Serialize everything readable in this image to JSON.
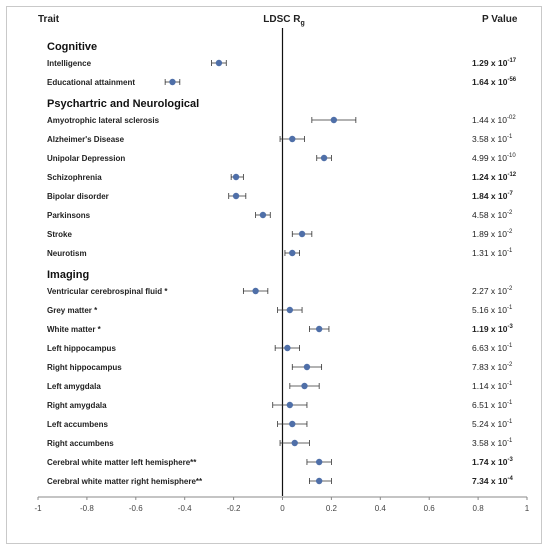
{
  "header": {
    "trait": "Trait",
    "ldsc": "LDSC R",
    "ldsc_sub": "g",
    "pvalue": "P Value"
  },
  "chart_data": {
    "type": "forest",
    "title": "",
    "xlabel": "",
    "ylabel": "",
    "xlim": [
      -1,
      1
    ],
    "xticks": [
      "-1",
      "-0.8",
      "-0.6",
      "-0.4",
      "-0.2",
      "0",
      "0.2",
      "0.4",
      "0.6",
      "0.8",
      "1"
    ],
    "grid": false,
    "marker_color": "#4f6fa8",
    "rows": [
      {
        "kind": "section",
        "label": "Cognitive"
      },
      {
        "kind": "trait",
        "label": "Intelligence",
        "est": -0.26,
        "lo": -0.29,
        "hi": -0.23,
        "p_mant": "1.29 x 10",
        "p_exp": "-17",
        "bold": true
      },
      {
        "kind": "trait",
        "label": "Educational attainment",
        "est": -0.45,
        "lo": -0.48,
        "hi": -0.42,
        "p_mant": "1.64 x 10",
        "p_exp": "-56",
        "bold": true
      },
      {
        "kind": "section",
        "label": "Psychartric and Neurological"
      },
      {
        "kind": "trait",
        "label": "Amyotrophic lateral sclerosis",
        "est": 0.21,
        "lo": 0.12,
        "hi": 0.3,
        "p_mant": "1.44 x 10",
        "p_exp": "-02",
        "bold": false
      },
      {
        "kind": "trait",
        "label": "Alzheimer's Disease",
        "est": 0.04,
        "lo": -0.01,
        "hi": 0.09,
        "p_mant": "3.58 x 10",
        "p_exp": "-1",
        "bold": false
      },
      {
        "kind": "trait",
        "label": "Unipolar Depression",
        "est": 0.17,
        "lo": 0.14,
        "hi": 0.2,
        "p_mant": "4.99 x 10",
        "p_exp": "-10",
        "bold": false
      },
      {
        "kind": "trait",
        "label": "Schizophrenia",
        "est": -0.19,
        "lo": -0.21,
        "hi": -0.16,
        "p_mant": "1.24 x 10",
        "p_exp": "-12",
        "bold": true
      },
      {
        "kind": "trait",
        "label": "Bipolar disorder",
        "est": -0.19,
        "lo": -0.22,
        "hi": -0.15,
        "p_mant": "1.84 x 10",
        "p_exp": "-7",
        "bold": true
      },
      {
        "kind": "trait",
        "label": "Parkinsons",
        "est": -0.08,
        "lo": -0.11,
        "hi": -0.05,
        "p_mant": "4.58 x 10",
        "p_exp": "-2",
        "bold": false
      },
      {
        "kind": "trait",
        "label": "Stroke",
        "est": 0.08,
        "lo": 0.04,
        "hi": 0.12,
        "p_mant": "1.89 x 10",
        "p_exp": "-2",
        "bold": false
      },
      {
        "kind": "trait",
        "label": "Neurotism",
        "est": 0.04,
        "lo": 0.01,
        "hi": 0.07,
        "p_mant": "1.31 x 10",
        "p_exp": "-1",
        "bold": false
      },
      {
        "kind": "section",
        "label": "Imaging"
      },
      {
        "kind": "trait",
        "label": "Ventricular cerebrospinal fluid *",
        "est": -0.11,
        "lo": -0.16,
        "hi": -0.06,
        "p_mant": "2.27 x 10",
        "p_exp": "-2",
        "bold": false
      },
      {
        "kind": "trait",
        "label": "Grey matter *",
        "est": 0.03,
        "lo": -0.02,
        "hi": 0.08,
        "p_mant": "5.16 x 10",
        "p_exp": "-1",
        "bold": false
      },
      {
        "kind": "trait",
        "label": "White matter *",
        "est": 0.15,
        "lo": 0.11,
        "hi": 0.19,
        "p_mant": "1.19 x 10",
        "p_exp": "-3",
        "bold": true
      },
      {
        "kind": "trait",
        "label": "Left hippocampus",
        "est": 0.02,
        "lo": -0.03,
        "hi": 0.07,
        "p_mant": "6.63 x 10",
        "p_exp": "-1",
        "bold": false
      },
      {
        "kind": "trait",
        "label": "Right hippocampus",
        "est": 0.1,
        "lo": 0.04,
        "hi": 0.16,
        "p_mant": "7.83 x 10",
        "p_exp": "-2",
        "bold": false
      },
      {
        "kind": "trait",
        "label": "Left amygdala",
        "est": 0.09,
        "lo": 0.03,
        "hi": 0.15,
        "p_mant": "1.14 x 10",
        "p_exp": "-1",
        "bold": false
      },
      {
        "kind": "trait",
        "label": "Right amygdala",
        "est": 0.03,
        "lo": -0.04,
        "hi": 0.1,
        "p_mant": "6.51 x 10",
        "p_exp": "-1",
        "bold": false
      },
      {
        "kind": "trait",
        "label": "Left accumbens",
        "est": 0.04,
        "lo": -0.02,
        "hi": 0.1,
        "p_mant": "5.24 x 10",
        "p_exp": "-1",
        "bold": false
      },
      {
        "kind": "trait",
        "label": "Right accumbens",
        "est": 0.05,
        "lo": -0.01,
        "hi": 0.11,
        "p_mant": "3.58 x 10",
        "p_exp": "-1",
        "bold": false
      },
      {
        "kind": "trait",
        "label": "Cerebral white matter left hemisphere**",
        "est": 0.15,
        "lo": 0.1,
        "hi": 0.2,
        "p_mant": "1.74 x 10",
        "p_exp": "-3",
        "bold": true
      },
      {
        "kind": "trait",
        "label": "Cerebral white matter right hemisphere**",
        "est": 0.15,
        "lo": 0.11,
        "hi": 0.2,
        "p_mant": "7.34 x 10",
        "p_exp": "-4",
        "bold": true
      }
    ]
  }
}
